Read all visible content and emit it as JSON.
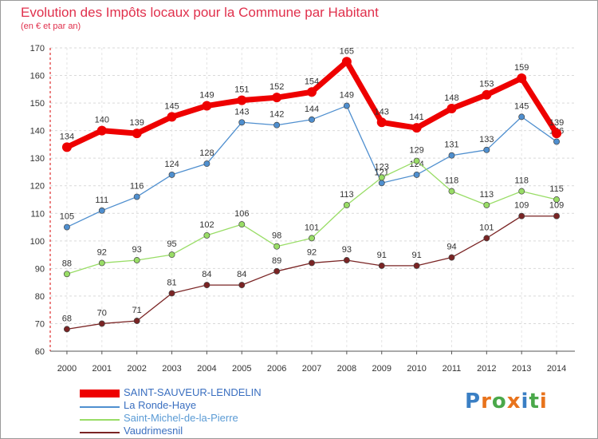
{
  "header": {
    "title": "Evolution des Impôts locaux pour la Commune par Habitant",
    "subtitle": "(en € et par an)"
  },
  "logo": {
    "letters": [
      "P",
      "r",
      "o",
      "x",
      "i",
      "t",
      "i"
    ],
    "colors": [
      "#3a7fc4",
      "#e8731c",
      "#4aa84a",
      "#e8731c",
      "#3a7fc4",
      "#4aa84a",
      "#e8731c"
    ]
  },
  "chart_data": {
    "type": "line",
    "title": "Evolution des Impôts locaux pour la Commune par Habitant",
    "subtitle": "(en € et par an)",
    "x": [
      "2000",
      "2001",
      "2002",
      "2003",
      "2004",
      "2005",
      "2006",
      "2007",
      "2008",
      "2009",
      "2010",
      "2011",
      "2012",
      "2013",
      "2014"
    ],
    "ylim": [
      60,
      170
    ],
    "yticks": [
      60,
      70,
      80,
      90,
      100,
      110,
      120,
      130,
      140,
      150,
      160,
      170
    ],
    "grid": true,
    "legend_position": "bottom-left",
    "series": [
      {
        "name": "SAINT-SAUVEUR-LENDELIN",
        "color": "#ee0000",
        "emphasis": true,
        "values": [
          134,
          140,
          139,
          145,
          149,
          151,
          152,
          154,
          165,
          143,
          141,
          148,
          153,
          159,
          139
        ]
      },
      {
        "name": "La Ronde-Haye",
        "color": "#4f8fcf",
        "emphasis": false,
        "values": [
          105,
          111,
          116,
          124,
          128,
          143,
          142,
          144,
          149,
          121,
          124,
          131,
          133,
          145,
          136
        ]
      },
      {
        "name": "Saint-Michel-de-la-Pierre",
        "color": "#99dd66",
        "emphasis": false,
        "values": [
          88,
          92,
          93,
          95,
          102,
          106,
          98,
          101,
          113,
          123,
          129,
          118,
          113,
          118,
          115
        ]
      },
      {
        "name": "Vaudrimesnil",
        "color": "#7a2424",
        "emphasis": false,
        "values": [
          68,
          70,
          71,
          81,
          84,
          84,
          89,
          92,
          93,
          91,
          91,
          94,
          101,
          109,
          109
        ]
      }
    ]
  }
}
